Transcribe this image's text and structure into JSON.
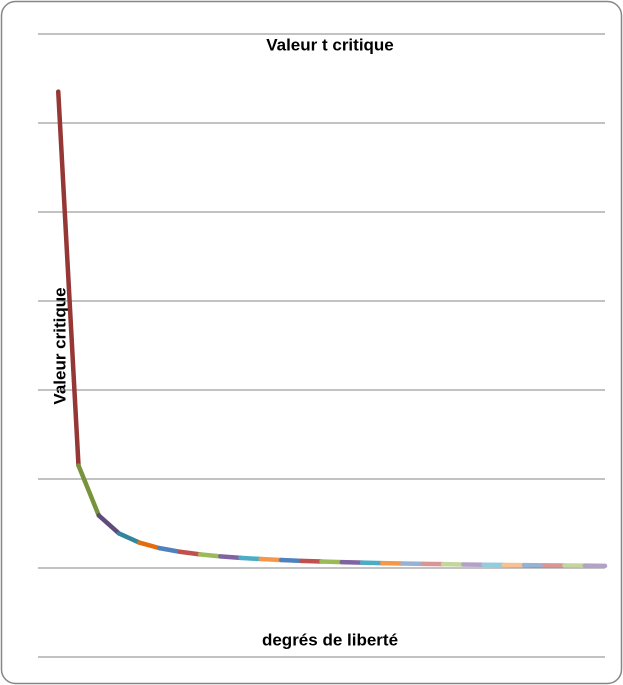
{
  "chart_data": {
    "type": "line",
    "title": "Valeur t critique",
    "x_label": "degrés de liberté",
    "y_label": "Valeur critique",
    "x": [
      1,
      2,
      3,
      4,
      5,
      6,
      7,
      8,
      9,
      10,
      11,
      12,
      13,
      14,
      15,
      16,
      17,
      18,
      19,
      20,
      21,
      22,
      23,
      24,
      25,
      26,
      27,
      28
    ],
    "values": [
      12.706,
      4.303,
      3.182,
      2.776,
      2.571,
      2.447,
      2.365,
      2.306,
      2.262,
      2.228,
      2.201,
      2.179,
      2.16,
      2.145,
      2.131,
      2.12,
      2.11,
      2.101,
      2.093,
      2.086,
      2.08,
      2.074,
      2.069,
      2.064,
      2.06,
      2.056,
      2.052,
      2.048
    ],
    "colors": [
      "#953735",
      "#77933c",
      "#604a7b",
      "#31859c",
      "#e46c0a",
      "#4f81bd",
      "#c0504d",
      "#9bbb59",
      "#8064a2",
      "#4bacc6",
      "#f79646",
      "#4f81bd",
      "#c0504d",
      "#9bbb59",
      "#8064a2",
      "#4bacc6",
      "#f79646",
      "#95b3d7",
      "#d99694",
      "#c3d69b",
      "#b3a2c7",
      "#93cddd",
      "#fac090",
      "#95b3d7",
      "#d99694",
      "#c3d69b",
      "#b3a2c7"
    ],
    "xlim": [
      0,
      28
    ],
    "ylim": [
      0,
      14
    ],
    "yticks": [
      0,
      2,
      4,
      6,
      8,
      10,
      12,
      14
    ],
    "grid": true
  }
}
